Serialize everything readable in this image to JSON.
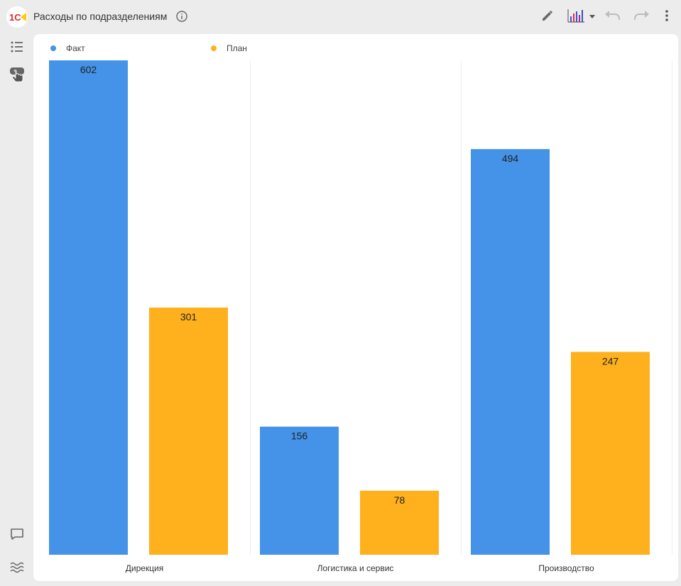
{
  "header": {
    "title": "Расходы по подразделениям",
    "logo_text": "1С"
  },
  "icons": {
    "info": "info-icon",
    "edit": "pencil-icon",
    "chart_type": "bar-chart-icon",
    "dropdown": "caret-down-icon",
    "undo": "undo-icon",
    "redo": "redo-icon",
    "more": "more-vert-icon",
    "settings": "list-settings-icon",
    "touch": "touch-hand-icon",
    "comments": "comment-icon",
    "layers": "waves-icon"
  },
  "colors": {
    "fact": "#4493e8",
    "plan": "#feb11d",
    "logo_red": "#e3262d",
    "logo_yellow": "#fdcb07"
  },
  "chart_data": {
    "type": "bar",
    "categories": [
      "Дирекция",
      "Логистика и сервис",
      "Производство"
    ],
    "series": [
      {
        "name": "Факт",
        "values": [
          602,
          156,
          494
        ]
      },
      {
        "name": "План",
        "values": [
          301,
          78,
          247
        ]
      }
    ],
    "ylim": [
      0,
      602
    ],
    "grid": false,
    "legend": "top-left"
  }
}
